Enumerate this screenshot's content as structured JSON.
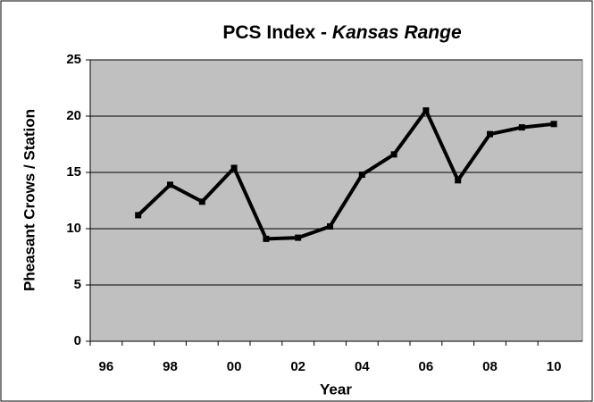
{
  "chart_data": {
    "type": "line",
    "title": "PCS Index -",
    "title_emphasis": "Kansas Range",
    "x_label": "Year",
    "y_label": "Pheasant Crows / Station",
    "categories": [
      "96",
      null,
      "98",
      null,
      "00",
      null,
      "02",
      null,
      "04",
      null,
      "06",
      null,
      "08",
      null,
      "10"
    ],
    "series": [
      {
        "name": "PCS Index",
        "color": "#000000",
        "values": [
          null,
          11.2,
          13.9,
          12.4,
          15.4,
          9.1,
          9.2,
          10.2,
          14.8,
          16.6,
          20.5,
          14.3,
          18.4,
          19.0,
          19.3
        ]
      }
    ],
    "ylim": [
      0,
      25
    ],
    "yticks": [
      0,
      5,
      10,
      15,
      20,
      25
    ],
    "grid": true,
    "background": "#c0c0c0"
  }
}
